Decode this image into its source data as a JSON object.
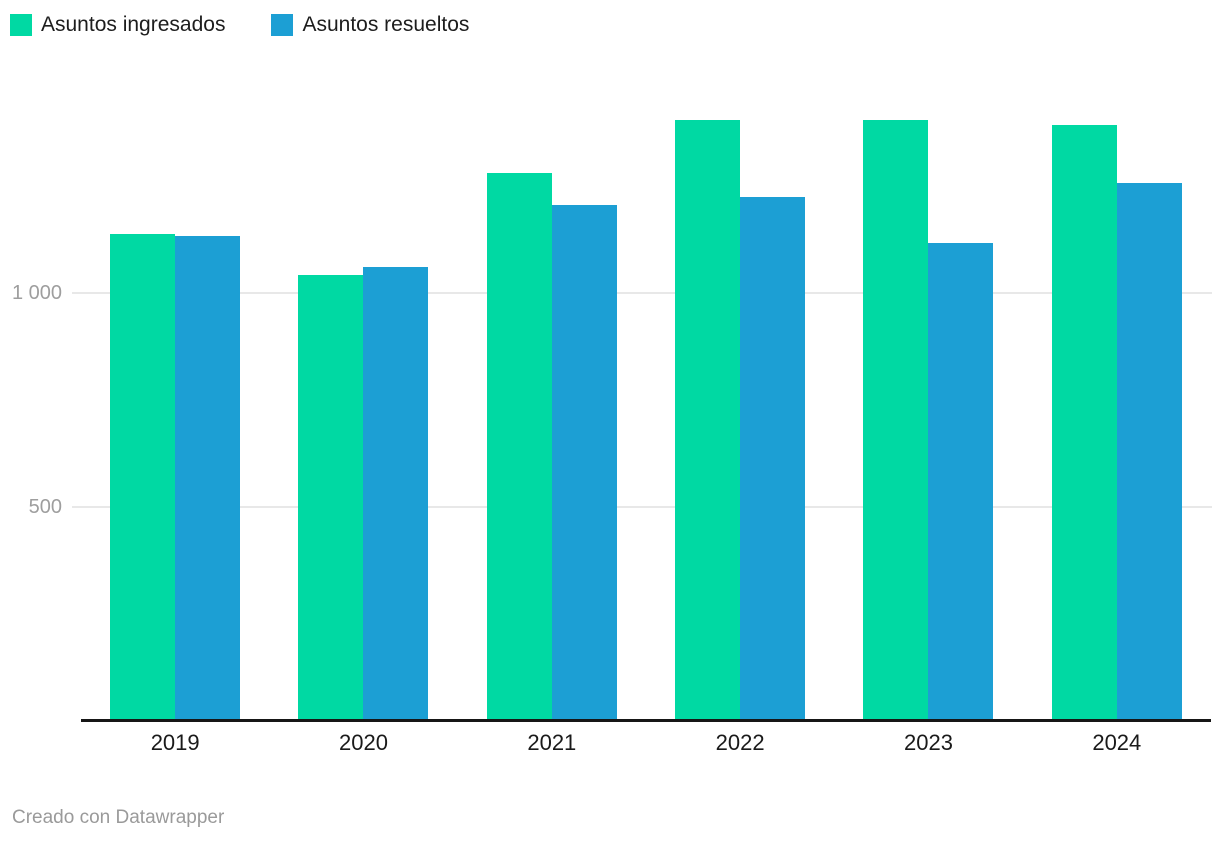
{
  "legend": {
    "items": [
      {
        "label": "Asuntos ingresados",
        "color": "#00D9A3"
      },
      {
        "label": "Asuntos resueltos",
        "color": "#1C9FD4"
      }
    ]
  },
  "footer": {
    "credit": "Creado con Datawrapper"
  },
  "colors": {
    "series_ingresados": "#00D9A3",
    "series_resueltos": "#1C9FD4",
    "gridline": "#E8E8E8",
    "axis_line": "#161616",
    "ytick_label": "#9E9E9E",
    "category_label": "#1A1A1A",
    "credit_text": "#9A9A9A"
  },
  "chart_data": {
    "type": "bar",
    "title": "",
    "xlabel": "",
    "ylabel": "",
    "categories": [
      "2019",
      "2020",
      "2021",
      "2022",
      "2023",
      "2024"
    ],
    "series": [
      {
        "name": "Asuntos ingresados",
        "color": "#00D9A3",
        "values": [
          1138,
          1042,
          1280,
          1404,
          1404,
          1392
        ]
      },
      {
        "name": "Asuntos resueltos",
        "color": "#1C9FD4",
        "values": [
          1133,
          1061,
          1205,
          1224,
          1117,
          1257
        ]
      }
    ],
    "ylim": [
      0,
      1545
    ],
    "yticks": [
      {
        "value": 500,
        "label": "500"
      },
      {
        "value": 1000,
        "label": "1 000"
      }
    ],
    "grid": "horizontal",
    "legend_position": "top-left"
  }
}
